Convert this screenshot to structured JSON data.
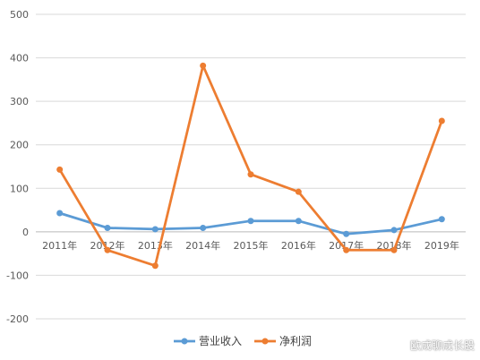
{
  "chart_data": {
    "type": "line",
    "categories": [
      "2011年",
      "2012年",
      "2013年",
      "2014年",
      "2015年",
      "2016年",
      "2017年",
      "2018年",
      "2019年"
    ],
    "series": [
      {
        "name": "营业收入",
        "color": "#5b9bd5",
        "values": [
          43,
          9,
          6,
          9,
          25,
          25,
          -5,
          4,
          29
        ]
      },
      {
        "name": "净利润",
        "color": "#ed7d31",
        "values": [
          143,
          -42,
          -78,
          382,
          132,
          92,
          -42,
          -42,
          255
        ]
      }
    ],
    "ylim": [
      -200,
      500
    ],
    "yticks": [
      500,
      400,
      300,
      200,
      100,
      0,
      -100,
      -200
    ],
    "grid": true,
    "legend": "bottom",
    "title": "",
    "xlabel": "",
    "ylabel": ""
  },
  "watermark": "欧成聊成长股"
}
